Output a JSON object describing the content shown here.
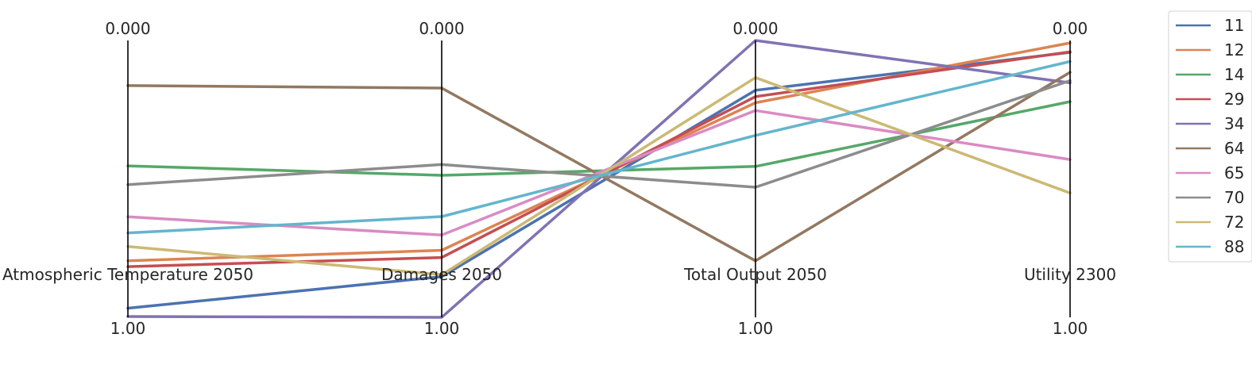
{
  "chart_data": {
    "type": "parallel_coordinates",
    "axes": [
      {
        "label": "Atmospheric Temperature 2050",
        "top_tick": "0.000",
        "bottom_tick": "1.00"
      },
      {
        "label": "Damages 2050",
        "top_tick": "0.000",
        "bottom_tick": "1.00"
      },
      {
        "label": "Total Output 2050",
        "top_tick": "0.000",
        "bottom_tick": "1.00"
      },
      {
        "label": "Utility 2300",
        "top_tick": "0.00",
        "bottom_tick": "1.00"
      }
    ],
    "scale": "normalized 0 (top) to 1 (bottom)",
    "series": [
      {
        "name": "11",
        "color": "#4c72b0",
        "values": [
          0.967,
          0.853,
          0.18,
          0.043
        ]
      },
      {
        "name": "12",
        "color": "#dd8452",
        "values": [
          0.796,
          0.758,
          0.225,
          0.009
        ]
      },
      {
        "name": "14",
        "color": "#55a868",
        "values": [
          0.453,
          0.487,
          0.455,
          0.221
        ]
      },
      {
        "name": "29",
        "color": "#c44e52",
        "values": [
          0.817,
          0.784,
          0.203,
          0.041
        ]
      },
      {
        "name": "34",
        "color": "#8172b3",
        "values": [
          0.997,
          1.0,
          0.0,
          0.153
        ]
      },
      {
        "name": "64",
        "color": "#937860",
        "values": [
          0.163,
          0.172,
          0.796,
          0.115
        ]
      },
      {
        "name": "65",
        "color": "#da8bc3",
        "values": [
          0.637,
          0.703,
          0.253,
          0.43
        ]
      },
      {
        "name": "70",
        "color": "#8c8c8c",
        "values": [
          0.521,
          0.448,
          0.53,
          0.145
        ]
      },
      {
        "name": "72",
        "color": "#ccb974",
        "values": [
          0.744,
          0.846,
          0.134,
          0.551
        ]
      },
      {
        "name": "88",
        "color": "#64b5cd",
        "values": [
          0.695,
          0.636,
          0.343,
          0.076
        ]
      }
    ],
    "legend": {
      "placement": "right",
      "entries": [
        "11",
        "12",
        "14",
        "29",
        "34",
        "64",
        "65",
        "70",
        "72",
        "88"
      ]
    }
  }
}
